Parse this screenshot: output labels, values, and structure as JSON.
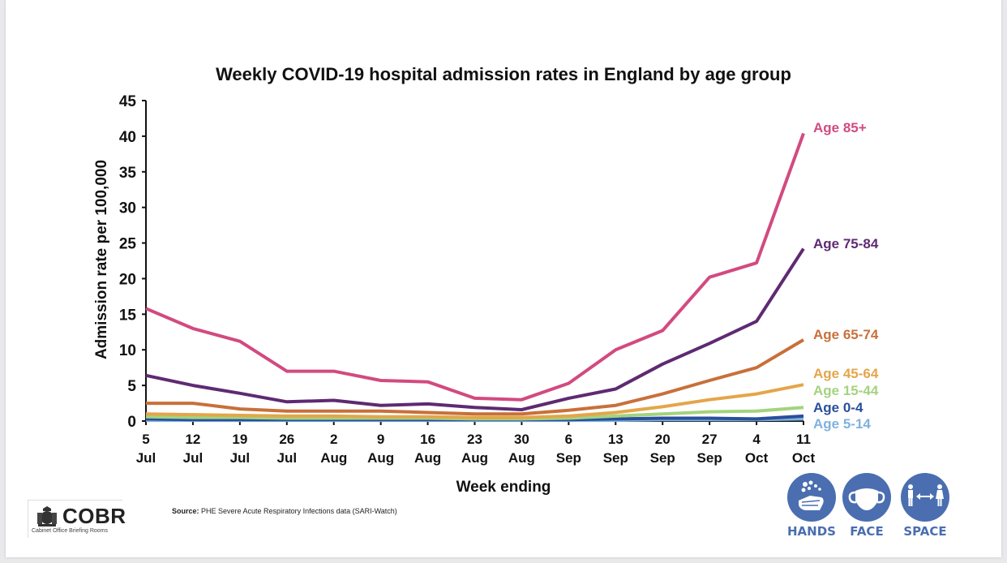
{
  "chart_data": {
    "type": "line",
    "title": "Weekly COVID-19 hospital admission rates in England by age group",
    "xlabel": "Week ending",
    "ylabel": "Admission rate per 100,000",
    "ylim": [
      0,
      45
    ],
    "yticks": [
      0,
      5,
      10,
      15,
      20,
      25,
      30,
      35,
      40,
      45
    ],
    "grid": false,
    "legend": "inline-right",
    "categories": [
      [
        "5",
        "Jul"
      ],
      [
        "12",
        "Jul"
      ],
      [
        "19",
        "Jul"
      ],
      [
        "26",
        "Jul"
      ],
      [
        "2",
        "Aug"
      ],
      [
        "9",
        "Aug"
      ],
      [
        "16",
        "Aug"
      ],
      [
        "23",
        "Aug"
      ],
      [
        "30",
        "Aug"
      ],
      [
        "6",
        "Sep"
      ],
      [
        "13",
        "Sep"
      ],
      [
        "20",
        "Sep"
      ],
      [
        "27",
        "Sep"
      ],
      [
        "4",
        "Oct"
      ],
      [
        "11",
        "Oct"
      ]
    ],
    "series": [
      {
        "name": "Age 5-14",
        "color": "#7fb2df",
        "values": [
          0.1,
          0.1,
          0.1,
          0.1,
          0.1,
          0.1,
          0.1,
          0.1,
          0.1,
          0.1,
          0.1,
          0.2,
          0.2,
          0.2,
          0.3
        ]
      },
      {
        "name": "Age 0-4",
        "color": "#2a4f9c",
        "values": [
          0.3,
          0.2,
          0.2,
          0.2,
          0.2,
          0.2,
          0.2,
          0.2,
          0.2,
          0.2,
          0.3,
          0.4,
          0.4,
          0.3,
          0.7
        ]
      },
      {
        "name": "Age 15-44",
        "color": "#a3d37e",
        "values": [
          0.6,
          0.5,
          0.5,
          0.4,
          0.4,
          0.4,
          0.4,
          0.3,
          0.3,
          0.4,
          0.7,
          1.0,
          1.3,
          1.4,
          1.9
        ]
      },
      {
        "name": "Age 45-64",
        "color": "#e3a64a",
        "values": [
          1.0,
          0.9,
          0.8,
          0.7,
          0.7,
          0.6,
          0.6,
          0.5,
          0.5,
          0.7,
          1.2,
          2.0,
          3.0,
          3.8,
          5.1
        ]
      },
      {
        "name": "Age 65-74",
        "color": "#c8703a",
        "values": [
          2.5,
          2.5,
          1.7,
          1.4,
          1.4,
          1.4,
          1.2,
          1.0,
          1.0,
          1.5,
          2.2,
          3.8,
          5.7,
          7.5,
          11.4
        ]
      },
      {
        "name": "Age 75-84",
        "color": "#5e2a72",
        "values": [
          6.4,
          5.0,
          3.9,
          2.7,
          2.9,
          2.2,
          2.4,
          1.9,
          1.6,
          3.2,
          4.5,
          8.0,
          10.9,
          14.0,
          24.2
        ]
      },
      {
        "name": "Age 85+",
        "color": "#d24a80",
        "values": [
          15.8,
          13.0,
          11.2,
          7.0,
          7.0,
          5.7,
          5.5,
          3.2,
          3.0,
          5.3,
          10.0,
          12.7,
          20.2,
          22.2,
          40.4
        ]
      }
    ],
    "source_label": "Source:",
    "source_text": " PHE Severe Acute Respiratory Infections data (SARI-Watch)"
  },
  "logo": {
    "name": "COBR",
    "subtitle": "Cabinet Office Briefing Rooms"
  },
  "campaign": {
    "color": "#4a6eb0",
    "items": [
      {
        "label": "HANDS",
        "icon": "hand-washing-icon"
      },
      {
        "label": "FACE",
        "icon": "face-mask-icon"
      },
      {
        "label": "SPACE",
        "icon": "social-distance-icon"
      }
    ]
  }
}
